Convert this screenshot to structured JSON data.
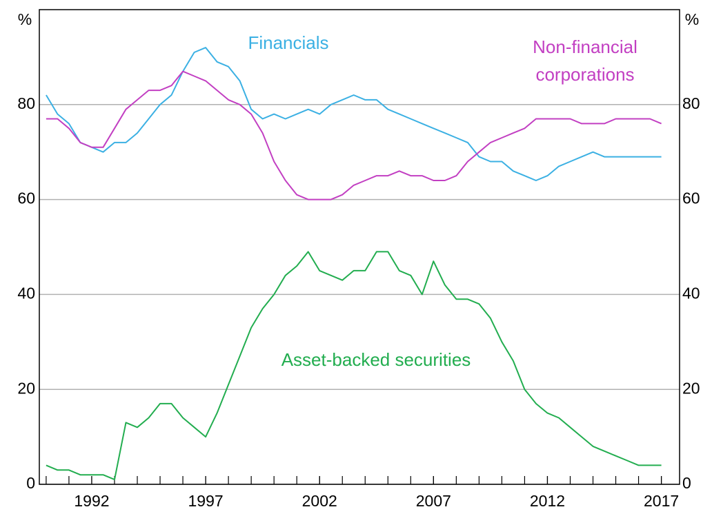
{
  "chart_data": {
    "type": "line",
    "y_unit_label": "%",
    "x": [
      1990,
      1990.5,
      1991,
      1991.5,
      1992,
      1992.5,
      1993,
      1993.5,
      1994,
      1994.5,
      1995,
      1995.5,
      1996,
      1996.5,
      1997,
      1997.5,
      1998,
      1998.5,
      1999,
      1999.5,
      2000,
      2000.5,
      2001,
      2001.5,
      2002,
      2002.5,
      2003,
      2003.5,
      2004,
      2004.5,
      2005,
      2005.5,
      2006,
      2006.5,
      2007,
      2007.5,
      2008,
      2008.5,
      2009,
      2009.5,
      2010,
      2010.5,
      2011,
      2011.5,
      2012,
      2012.5,
      2013,
      2013.5,
      2014,
      2014.5,
      2015,
      2015.5,
      2016,
      2016.5,
      2017
    ],
    "series": [
      {
        "name": "Financials",
        "color": "#3bb0e3",
        "values": [
          82,
          78,
          76,
          72,
          71,
          70,
          72,
          72,
          74,
          77,
          80,
          82,
          87,
          91,
          92,
          89,
          88,
          85,
          79,
          77,
          78,
          77,
          78,
          79,
          78,
          80,
          81,
          82,
          81,
          81,
          79,
          78,
          77,
          76,
          75,
          74,
          73,
          72,
          69,
          68,
          68,
          66,
          65,
          64,
          65,
          67,
          68,
          69,
          70,
          69,
          69,
          69,
          69,
          69,
          69
        ]
      },
      {
        "name": "Non-financial corporations",
        "color": "#c23fc2",
        "values": [
          77,
          77,
          75,
          72,
          71,
          71,
          75,
          79,
          81,
          83,
          83,
          84,
          87,
          86,
          85,
          83,
          81,
          80,
          78,
          74,
          68,
          64,
          61,
          60,
          60,
          60,
          61,
          63,
          64,
          65,
          65,
          66,
          65,
          65,
          64,
          64,
          65,
          68,
          70,
          72,
          73,
          74,
          75,
          77,
          77,
          77,
          77,
          76,
          76,
          76,
          77,
          77,
          77,
          77,
          76
        ]
      },
      {
        "name": "Asset-backed securities",
        "color": "#22ad4f",
        "values": [
          4,
          3,
          3,
          2,
          2,
          2,
          1,
          13,
          12,
          14,
          17,
          17,
          14,
          12,
          10,
          15,
          21,
          27,
          33,
          37,
          40,
          44,
          46,
          49,
          45,
          44,
          43,
          45,
          45,
          49,
          49,
          45,
          44,
          40,
          47,
          42,
          39,
          39,
          38,
          35,
          30,
          26,
          20,
          17,
          15,
          14,
          12,
          10,
          8,
          7,
          6,
          5,
          4,
          4,
          4
        ]
      }
    ],
    "xlim": [
      1989.7,
      2017.8
    ],
    "xticks": [
      1992,
      1997,
      2002,
      2007,
      2012,
      2017
    ],
    "ylim": [
      0,
      100
    ],
    "yticks": [
      0,
      20,
      40,
      60,
      80
    ],
    "grid": true
  }
}
